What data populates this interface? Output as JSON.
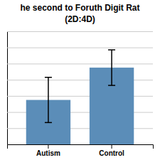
{
  "chart_data": {
    "type": "bar",
    "title": "he second to Foruth Digit Rat",
    "subtitle": "(2D:4D)",
    "categories": [
      "Autism",
      "Control"
    ],
    "values": [
      0.935,
      0.975
    ],
    "errors": [
      0.028,
      0.022
    ],
    "color": "#5B8DB8",
    "ylim": [
      0.88,
      1.02
    ],
    "yticks": [
      0.88,
      0.9,
      0.92,
      0.94,
      0.96,
      0.98,
      1,
      1.02
    ],
    "grid": true,
    "tick_labels": "x"
  }
}
